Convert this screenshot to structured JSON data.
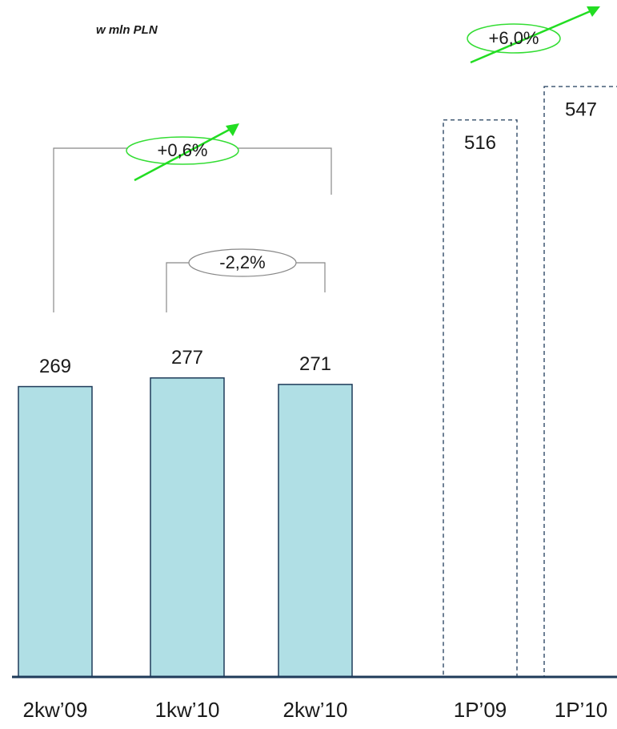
{
  "chart_data": {
    "type": "bar",
    "subtitle": "w mln PLN",
    "categories": [
      "2kw’09",
      "1kw’10",
      "2kw’10",
      "1P’09",
      "1P’10"
    ],
    "values": [
      269,
      277,
      271,
      516,
      547
    ],
    "colors": [
      "#b0dfe5",
      "#b0dfe5",
      "#b0dfe5",
      "none",
      "none"
    ],
    "annotations": [
      "+0,6%",
      "-2,2%",
      "+6,0%"
    ]
  }
}
